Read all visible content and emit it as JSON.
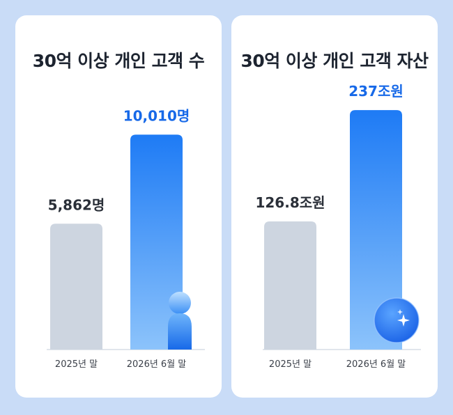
{
  "colors": {
    "background": "#c9dcf7",
    "card": "#ffffff",
    "bar_previous": "#cdd5e0",
    "bar_current_top": "#1e7bf5",
    "bar_current_bottom": "#8cc3fb",
    "label_previous": "#2a2f38",
    "label_current": "#1769e8",
    "baseline": "#d7dde6"
  },
  "icons": [
    "person-icon",
    "coin-sparkle-icon"
  ],
  "chart_data": [
    {
      "type": "bar",
      "title": "30억 이상 개인 고객 수",
      "categories": [
        "2025년 말",
        "2026년 6월 말"
      ],
      "values": [
        5862,
        10010
      ],
      "value_labels": [
        "5,862명",
        "10,010명"
      ],
      "ylim": [
        0,
        12000
      ],
      "grid": false,
      "legend": "none"
    },
    {
      "type": "bar",
      "title": "30억 이상 개인 고객 자산",
      "categories": [
        "2025년 말",
        "2026년 6월 말"
      ],
      "values": [
        126.8,
        237
      ],
      "value_labels": [
        "126.8조원",
        "237조원"
      ],
      "ylim": [
        0,
        255
      ],
      "grid": false,
      "legend": "none"
    }
  ]
}
